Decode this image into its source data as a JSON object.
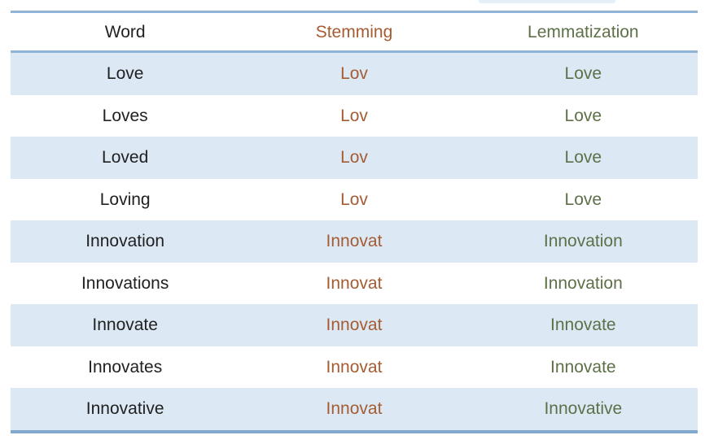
{
  "colors": {
    "stripe": "#dce9f5",
    "border": "#8fb4d6",
    "border_strong": "#7fa9ce",
    "word_text": "#212121",
    "stemming_text": "#a55c33",
    "lemmatization_text": "#5e7048"
  },
  "table": {
    "headers": [
      {
        "label": "Word"
      },
      {
        "label": "Stemming"
      },
      {
        "label": "Lemmatization"
      }
    ],
    "rows": [
      {
        "word": "Love",
        "stemming": "Lov",
        "lemmatization": "Love"
      },
      {
        "word": "Loves",
        "stemming": "Lov",
        "lemmatization": "Love"
      },
      {
        "word": "Loved",
        "stemming": "Lov",
        "lemmatization": "Love"
      },
      {
        "word": "Loving",
        "stemming": "Lov",
        "lemmatization": "Love"
      },
      {
        "word": "Innovation",
        "stemming": "Innovat",
        "lemmatization": "Innovation"
      },
      {
        "word": "Innovations",
        "stemming": "Innovat",
        "lemmatization": "Innovation"
      },
      {
        "word": "Innovate",
        "stemming": "Innovat",
        "lemmatization": "Innovate"
      },
      {
        "word": "Innovates",
        "stemming": "Innovat",
        "lemmatization": "Innovate"
      },
      {
        "word": "Innovative",
        "stemming": "Innovat",
        "lemmatization": "Innovative"
      }
    ]
  }
}
